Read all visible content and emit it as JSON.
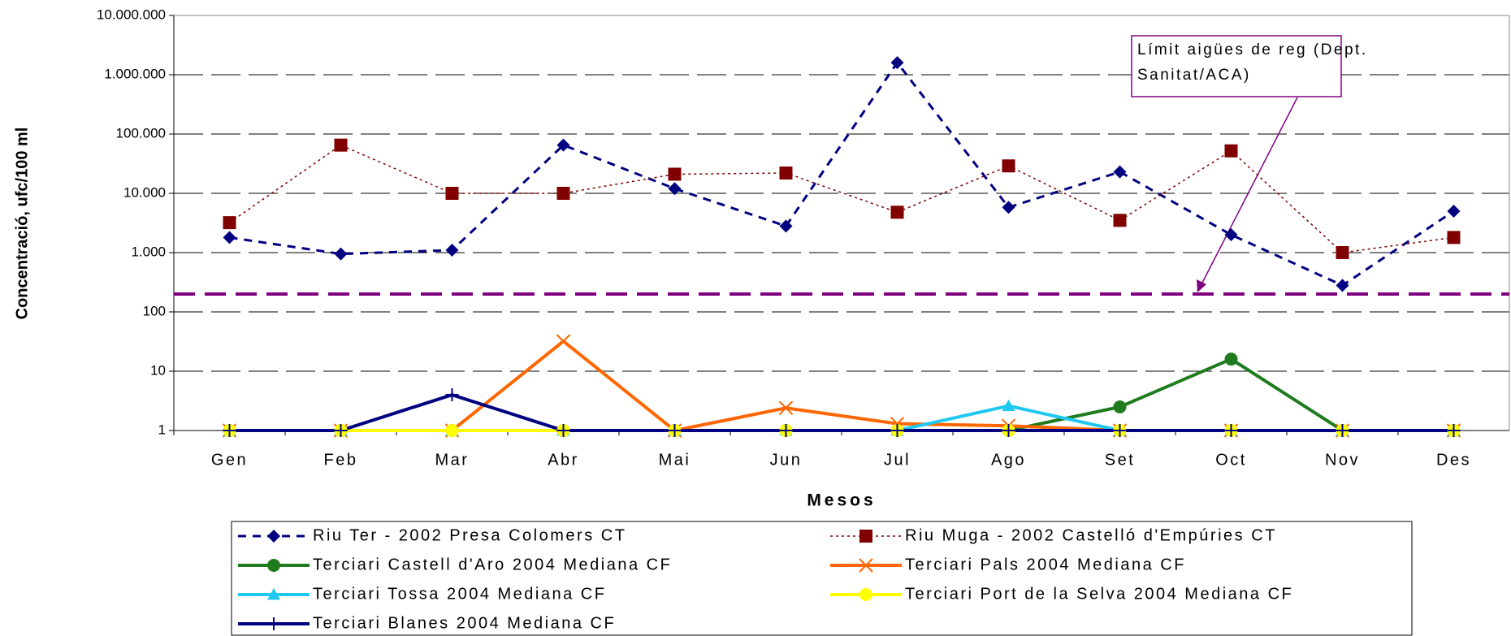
{
  "chart_data": {
    "type": "line",
    "x_label": "Mesos",
    "y_label": "Concentració, ufc/100 ml",
    "log_scale": true,
    "grid": true,
    "categories": [
      "Gen",
      "Feb",
      "Mar",
      "Abr",
      "Mai",
      "Jun",
      "Jul",
      "Ago",
      "Set",
      "Oct",
      "Nov",
      "Des"
    ],
    "ylim": [
      1,
      10000000
    ],
    "yticks": [
      1,
      10,
      100,
      {
        "value": 1000,
        "label": "1.000"
      },
      {
        "value": 10000,
        "label": "10.000"
      },
      {
        "value": 100000,
        "label": "100.000"
      },
      {
        "value": 1000000,
        "label": "1.000.000"
      },
      {
        "value": 10000000,
        "label": "10.000.000"
      }
    ],
    "reference_line": {
      "value": 200,
      "color": "#800080"
    },
    "annotation": [
      "Límit aigües de reg (Dept.",
      "Sanitat/ACA)"
    ],
    "series": [
      {
        "name": "Riu Ter - 2002 Presa Colomers CT",
        "color": "#000080",
        "dash": "10,8",
        "marker": "diamond",
        "values": [
          1800,
          950,
          1100,
          65000,
          12000,
          2800,
          1600000,
          5800,
          23000,
          2000,
          280,
          5000
        ]
      },
      {
        "name": "Riu Muga - 2002 Castelló d'Empúries CT",
        "color": "#800000",
        "dash": "3,4",
        "marker": "square",
        "values": [
          3200,
          65000,
          10000,
          10000,
          21000,
          22000,
          4800,
          29000,
          3500,
          52000,
          1000,
          1800
        ]
      },
      {
        "name": "Terciari Castell d'Aro 2004 Mediana CF",
        "color": "#1e7b1e",
        "dash": "none",
        "marker": "circle",
        "values": [
          1,
          1,
          1,
          1,
          1,
          1,
          1,
          1,
          2.5,
          16,
          1,
          1
        ]
      },
      {
        "name": "Terciari Pals 2004 Mediana CF",
        "color": "#ff6600",
        "dash": "none",
        "marker": "x",
        "values": [
          1,
          1,
          1,
          32,
          1,
          2.4,
          1.3,
          1.2,
          1,
          1,
          1,
          1
        ]
      },
      {
        "name": "Terciari Tossa 2004 Mediana CF",
        "color": "#1ec8f0",
        "dash": "none",
        "marker": "triangle",
        "values": [
          1,
          1,
          1,
          1,
          1,
          1,
          1,
          2.6,
          1,
          1,
          1,
          1
        ]
      },
      {
        "name": "Terciari Port de la Selva 2004 Mediana CF",
        "color": "#ffff00",
        "dash": "none",
        "marker": "circle",
        "values": [
          1,
          1,
          1,
          1,
          1,
          1,
          1,
          1,
          1,
          1,
          1,
          1
        ]
      },
      {
        "name": "Terciari Blanes 2004 Mediana CF",
        "color": "#000080",
        "dash": "none",
        "marker": "plus",
        "values": [
          1,
          1,
          4,
          1,
          1,
          1,
          1,
          1,
          1,
          1,
          1,
          1
        ]
      }
    ]
  }
}
